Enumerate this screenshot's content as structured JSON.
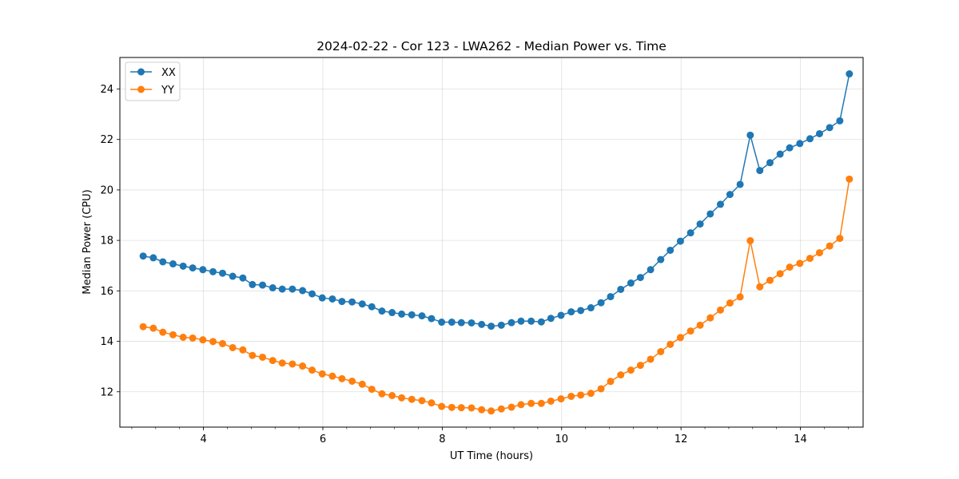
{
  "chart_data": {
    "type": "line",
    "title": "2024-02-22 - Cor 123 - LWA262 - Median Power vs. Time",
    "xlabel": "UT Time (hours)",
    "ylabel": "Median Power (CPU)",
    "xlim": [
      2.6,
      15.05
    ],
    "ylim": [
      10.6,
      25.25
    ],
    "xticks": [
      4,
      6,
      8,
      10,
      12,
      14
    ],
    "yticks": [
      12,
      14,
      16,
      18,
      20,
      22,
      24
    ],
    "x_minor_step": 0.4,
    "grid": true,
    "legend": "top-left",
    "x": [
      2.99,
      3.16,
      3.32,
      3.49,
      3.66,
      3.82,
      3.99,
      4.16,
      4.32,
      4.49,
      4.66,
      4.82,
      4.99,
      5.16,
      5.32,
      5.49,
      5.66,
      5.82,
      5.99,
      6.16,
      6.32,
      6.49,
      6.66,
      6.82,
      6.99,
      7.16,
      7.32,
      7.49,
      7.66,
      7.82,
      7.99,
      8.16,
      8.32,
      8.49,
      8.66,
      8.82,
      8.99,
      9.16,
      9.32,
      9.49,
      9.66,
      9.82,
      9.99,
      10.16,
      10.32,
      10.49,
      10.66,
      10.82,
      10.99,
      11.16,
      11.32,
      11.49,
      11.66,
      11.82,
      11.99,
      12.16,
      12.32,
      12.49,
      12.66,
      12.82,
      12.99,
      13.16,
      13.32,
      13.49,
      13.66,
      13.82,
      13.99,
      14.16,
      14.32,
      14.49,
      14.66,
      14.82
    ],
    "series": [
      {
        "name": "XX",
        "color": "#1f77b4",
        "values": [
          17.38,
          17.31,
          17.15,
          17.07,
          16.98,
          16.91,
          16.84,
          16.76,
          16.7,
          16.58,
          16.51,
          16.25,
          16.23,
          16.12,
          16.07,
          16.07,
          16.01,
          15.88,
          15.72,
          15.68,
          15.58,
          15.56,
          15.48,
          15.37,
          15.2,
          15.14,
          15.08,
          15.05,
          15.01,
          14.9,
          14.76,
          14.76,
          14.74,
          14.73,
          14.67,
          14.6,
          14.64,
          14.74,
          14.8,
          14.8,
          14.77,
          14.91,
          15.03,
          15.17,
          15.22,
          15.33,
          15.53,
          15.77,
          16.06,
          16.31,
          16.53,
          16.84,
          17.24,
          17.61,
          17.97,
          18.3,
          18.65,
          19.05,
          19.43,
          19.82,
          20.22,
          22.17,
          20.77,
          21.08,
          21.42,
          21.67,
          21.84,
          22.03,
          22.23,
          22.47,
          22.74,
          24.6
        ]
      },
      {
        "name": "YY",
        "color": "#ff7f0e",
        "values": [
          14.58,
          14.52,
          14.36,
          14.26,
          14.16,
          14.13,
          14.06,
          13.99,
          13.91,
          13.75,
          13.66,
          13.44,
          13.37,
          13.24,
          13.14,
          13.1,
          13.02,
          12.86,
          12.71,
          12.62,
          12.52,
          12.42,
          12.3,
          12.1,
          11.92,
          11.85,
          11.76,
          11.7,
          11.65,
          11.56,
          11.42,
          11.38,
          11.37,
          11.36,
          11.29,
          11.24,
          11.32,
          11.39,
          11.49,
          11.54,
          11.54,
          11.63,
          11.72,
          11.82,
          11.87,
          11.94,
          12.12,
          12.41,
          12.67,
          12.86,
          13.05,
          13.29,
          13.59,
          13.88,
          14.15,
          14.41,
          14.64,
          14.93,
          15.24,
          15.52,
          15.76,
          17.99,
          16.16,
          16.42,
          16.68,
          16.94,
          17.09,
          17.29,
          17.51,
          17.78,
          18.08,
          20.43
        ]
      }
    ]
  }
}
